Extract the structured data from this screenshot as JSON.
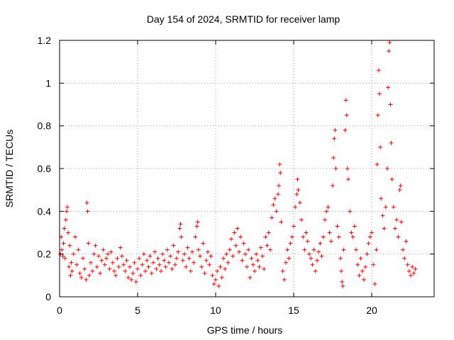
{
  "chart_data": {
    "type": "scatter",
    "title": "Day 154 of 2024, SRMTID for receiver lamp",
    "xlabel": "GPS time / hours",
    "ylabel": "SRMTID / TECUs",
    "xlim": [
      0,
      24
    ],
    "ylim": [
      0,
      1.2
    ],
    "xticks": [
      0,
      5,
      10,
      15,
      20
    ],
    "xtick_labels": [
      "0",
      "5",
      "10",
      "15",
      "20"
    ],
    "yticks": [
      0,
      0.2,
      0.4,
      0.6,
      0.8,
      1.0,
      1.2
    ],
    "ytick_labels": [
      "0",
      "0.2",
      "0.4",
      "0.6",
      "0.8",
      "1",
      "1.2"
    ],
    "grid": true,
    "marker": "+",
    "color": "#ff0000",
    "series": [
      {
        "name": "SRMTID",
        "points": [
          [
            0.05,
            0.2
          ],
          [
            0.1,
            0.28
          ],
          [
            0.15,
            0.22
          ],
          [
            0.2,
            0.19
          ],
          [
            0.25,
            0.25
          ],
          [
            0.3,
            0.32
          ],
          [
            0.35,
            0.18
          ],
          [
            0.4,
            0.36
          ],
          [
            0.45,
            0.4
          ],
          [
            0.5,
            0.42
          ],
          [
            0.55,
            0.3
          ],
          [
            0.6,
            0.14
          ],
          [
            0.65,
            0.24
          ],
          [
            0.7,
            0.1
          ],
          [
            0.75,
            0.16
          ],
          [
            0.8,
            0.12
          ],
          [
            0.9,
            0.2
          ],
          [
            1.0,
            0.28
          ],
          [
            1.1,
            0.15
          ],
          [
            1.2,
            0.22
          ],
          [
            1.3,
            0.11
          ],
          [
            1.4,
            0.09
          ],
          [
            1.5,
            0.18
          ],
          [
            1.6,
            0.13
          ],
          [
            1.7,
            0.08
          ],
          [
            1.75,
            0.44
          ],
          [
            1.8,
            0.4
          ],
          [
            1.85,
            0.25
          ],
          [
            1.9,
            0.1
          ],
          [
            2.0,
            0.16
          ],
          [
            2.1,
            0.12
          ],
          [
            2.2,
            0.2
          ],
          [
            2.3,
            0.24
          ],
          [
            2.4,
            0.14
          ],
          [
            2.5,
            0.19
          ],
          [
            2.6,
            0.11
          ],
          [
            2.7,
            0.17
          ],
          [
            2.8,
            0.22
          ],
          [
            2.9,
            0.15
          ],
          [
            3.0,
            0.18
          ],
          [
            3.1,
            0.2
          ],
          [
            3.2,
            0.13
          ],
          [
            3.3,
            0.21
          ],
          [
            3.4,
            0.16
          ],
          [
            3.5,
            0.12
          ],
          [
            3.6,
            0.1
          ],
          [
            3.7,
            0.18
          ],
          [
            3.8,
            0.14
          ],
          [
            3.9,
            0.23
          ],
          [
            4.0,
            0.19
          ],
          [
            4.1,
            0.15
          ],
          [
            4.2,
            0.12
          ],
          [
            4.3,
            0.17
          ],
          [
            4.4,
            0.09
          ],
          [
            4.5,
            0.14
          ],
          [
            4.6,
            0.08
          ],
          [
            4.7,
            0.11
          ],
          [
            4.8,
            0.16
          ],
          [
            4.9,
            0.07
          ],
          [
            5.0,
            0.13
          ],
          [
            5.1,
            0.18
          ],
          [
            5.2,
            0.1
          ],
          [
            5.3,
            0.15
          ],
          [
            5.4,
            0.2
          ],
          [
            5.5,
            0.12
          ],
          [
            5.6,
            0.17
          ],
          [
            5.7,
            0.14
          ],
          [
            5.8,
            0.19
          ],
          [
            5.9,
            0.11
          ],
          [
            6.0,
            0.16
          ],
          [
            6.1,
            0.21
          ],
          [
            6.2,
            0.13
          ],
          [
            6.3,
            0.18
          ],
          [
            6.4,
            0.15
          ],
          [
            6.5,
            0.12
          ],
          [
            6.6,
            0.2
          ],
          [
            6.7,
            0.17
          ],
          [
            6.8,
            0.14
          ],
          [
            6.9,
            0.22
          ],
          [
            7.0,
            0.16
          ],
          [
            7.1,
            0.19
          ],
          [
            7.2,
            0.13
          ],
          [
            7.3,
            0.24
          ],
          [
            7.4,
            0.15
          ],
          [
            7.5,
            0.18
          ],
          [
            7.6,
            0.21
          ],
          [
            7.7,
            0.32
          ],
          [
            7.75,
            0.34
          ],
          [
            7.8,
            0.28
          ],
          [
            7.9,
            0.17
          ],
          [
            8.0,
            0.2
          ],
          [
            8.1,
            0.14
          ],
          [
            8.2,
            0.23
          ],
          [
            8.3,
            0.18
          ],
          [
            8.4,
            0.12
          ],
          [
            8.5,
            0.21
          ],
          [
            8.6,
            0.16
          ],
          [
            8.7,
            0.28
          ],
          [
            8.8,
            0.33
          ],
          [
            8.85,
            0.35
          ],
          [
            8.9,
            0.22
          ],
          [
            9.0,
            0.19
          ],
          [
            9.1,
            0.14
          ],
          [
            9.2,
            0.25
          ],
          [
            9.3,
            0.11
          ],
          [
            9.4,
            0.17
          ],
          [
            9.5,
            0.21
          ],
          [
            9.6,
            0.15
          ],
          [
            9.7,
            0.19
          ],
          [
            9.8,
            0.1
          ],
          [
            9.9,
            0.06
          ],
          [
            10.0,
            0.08
          ],
          [
            10.1,
            0.12
          ],
          [
            10.2,
            0.05
          ],
          [
            10.3,
            0.14
          ],
          [
            10.4,
            0.09
          ],
          [
            10.5,
            0.18
          ],
          [
            10.6,
            0.13
          ],
          [
            10.7,
            0.2
          ],
          [
            10.8,
            0.16
          ],
          [
            10.9,
            0.22
          ],
          [
            11.0,
            0.27
          ],
          [
            11.1,
            0.19
          ],
          [
            11.2,
            0.3
          ],
          [
            11.3,
            0.24
          ],
          [
            11.4,
            0.32
          ],
          [
            11.5,
            0.21
          ],
          [
            11.6,
            0.28
          ],
          [
            11.7,
            0.17
          ],
          [
            11.8,
            0.25
          ],
          [
            11.9,
            0.2
          ],
          [
            12.0,
            0.14
          ],
          [
            12.1,
            0.22
          ],
          [
            12.2,
            0.09
          ],
          [
            12.3,
            0.18
          ],
          [
            12.4,
            0.15
          ],
          [
            12.5,
            0.12
          ],
          [
            12.6,
            0.2
          ],
          [
            12.7,
            0.17
          ],
          [
            12.8,
            0.14
          ],
          [
            12.9,
            0.23
          ],
          [
            13.0,
            0.19
          ],
          [
            13.1,
            0.13
          ],
          [
            13.2,
            0.28
          ],
          [
            13.3,
            0.24
          ],
          [
            13.4,
            0.3
          ],
          [
            13.5,
            0.22
          ],
          [
            13.6,
            0.37
          ],
          [
            13.7,
            0.43
          ],
          [
            13.8,
            0.46
          ],
          [
            13.9,
            0.4
          ],
          [
            14.0,
            0.48
          ],
          [
            14.05,
            0.52
          ],
          [
            14.1,
            0.62
          ],
          [
            14.15,
            0.58
          ],
          [
            14.2,
            0.35
          ],
          [
            14.3,
            0.12
          ],
          [
            14.4,
            0.08
          ],
          [
            14.5,
            0.16
          ],
          [
            14.6,
            0.22
          ],
          [
            14.7,
            0.18
          ],
          [
            14.8,
            0.25
          ],
          [
            14.9,
            0.28
          ],
          [
            15.0,
            0.33
          ],
          [
            15.1,
            0.42
          ],
          [
            15.2,
            0.48
          ],
          [
            15.25,
            0.55
          ],
          [
            15.3,
            0.5
          ],
          [
            15.4,
            0.44
          ],
          [
            15.5,
            0.36
          ],
          [
            15.6,
            0.28
          ],
          [
            15.7,
            0.22
          ],
          [
            15.8,
            0.3
          ],
          [
            15.9,
            0.26
          ],
          [
            16.0,
            0.2
          ],
          [
            16.1,
            0.18
          ],
          [
            16.2,
            0.15
          ],
          [
            16.3,
            0.22
          ],
          [
            16.4,
            0.12
          ],
          [
            16.5,
            0.17
          ],
          [
            16.6,
            0.21
          ],
          [
            16.7,
            0.25
          ],
          [
            16.8,
            0.19
          ],
          [
            16.9,
            0.28
          ],
          [
            17.0,
            0.36
          ],
          [
            17.1,
            0.4
          ],
          [
            17.2,
            0.42
          ],
          [
            17.3,
            0.3
          ],
          [
            17.4,
            0.26
          ],
          [
            17.5,
            0.52
          ],
          [
            17.55,
            0.65
          ],
          [
            17.6,
            0.74
          ],
          [
            17.65,
            0.78
          ],
          [
            17.7,
            0.6
          ],
          [
            17.8,
            0.33
          ],
          [
            17.9,
            0.28
          ],
          [
            18.0,
            0.18
          ],
          [
            18.05,
            0.12
          ],
          [
            18.1,
            0.07
          ],
          [
            18.15,
            0.05
          ],
          [
            18.2,
            0.22
          ],
          [
            18.3,
            0.78
          ],
          [
            18.35,
            0.92
          ],
          [
            18.4,
            0.85
          ],
          [
            18.45,
            0.6
          ],
          [
            18.5,
            0.55
          ],
          [
            18.6,
            0.4
          ],
          [
            18.7,
            0.3
          ],
          [
            18.8,
            0.28
          ],
          [
            18.9,
            0.33
          ],
          [
            19.0,
            0.22
          ],
          [
            19.1,
            0.15
          ],
          [
            19.2,
            0.1
          ],
          [
            19.3,
            0.18
          ],
          [
            19.4,
            0.12
          ],
          [
            19.5,
            0.08
          ],
          [
            19.6,
            0.14
          ],
          [
            19.7,
            0.2
          ],
          [
            19.8,
            0.25
          ],
          [
            19.9,
            0.28
          ],
          [
            20.0,
            0.3
          ],
          [
            20.1,
            0.15
          ],
          [
            20.2,
            0.06
          ],
          [
            20.3,
            0.22
          ],
          [
            20.35,
            0.62
          ],
          [
            20.4,
            0.85
          ],
          [
            20.45,
            1.06
          ],
          [
            20.5,
            0.95
          ],
          [
            20.55,
            0.7
          ],
          [
            20.6,
            0.46
          ],
          [
            20.7,
            0.38
          ],
          [
            20.8,
            0.32
          ],
          [
            20.9,
            0.42
          ],
          [
            21.0,
            0.6
          ],
          [
            21.05,
            0.98
          ],
          [
            21.1,
            1.15
          ],
          [
            21.15,
            1.19
          ],
          [
            21.2,
            0.9
          ],
          [
            21.25,
            0.72
          ],
          [
            21.3,
            0.55
          ],
          [
            21.4,
            0.42
          ],
          [
            21.5,
            0.32
          ],
          [
            21.6,
            0.36
          ],
          [
            21.7,
            0.28
          ],
          [
            21.8,
            0.5
          ],
          [
            21.85,
            0.52
          ],
          [
            21.9,
            0.35
          ],
          [
            22.0,
            0.22
          ],
          [
            22.1,
            0.18
          ],
          [
            22.2,
            0.26
          ],
          [
            22.3,
            0.15
          ],
          [
            22.4,
            0.12
          ],
          [
            22.5,
            0.1
          ],
          [
            22.6,
            0.14
          ],
          [
            22.7,
            0.11
          ],
          [
            22.8,
            0.13
          ]
        ]
      }
    ]
  }
}
